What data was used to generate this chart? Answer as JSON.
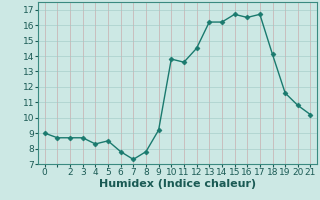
{
  "x": [
    0,
    1,
    2,
    3,
    4,
    5,
    6,
    7,
    8,
    9,
    10,
    11,
    12,
    13,
    14,
    15,
    16,
    17,
    18,
    19,
    20,
    21
  ],
  "y": [
    9.0,
    8.7,
    8.7,
    8.7,
    8.3,
    8.5,
    7.8,
    7.3,
    7.8,
    9.2,
    13.8,
    13.6,
    14.5,
    16.2,
    16.2,
    16.7,
    16.5,
    16.7,
    14.1,
    11.6,
    10.8,
    10.2
  ],
  "line_color": "#1a7a6e",
  "marker": "D",
  "marker_size": 2.5,
  "bg_color": "#cce8e4",
  "grid_color_major": "#b0d4cf",
  "grid_color_minor": "#e8f5f3",
  "xlabel": "Humidex (Indice chaleur)",
  "xlabel_fontsize": 8,
  "xlim": [
    -0.5,
    21.5
  ],
  "ylim": [
    7,
    17.5
  ],
  "yticks": [
    7,
    8,
    9,
    10,
    11,
    12,
    13,
    14,
    15,
    16,
    17
  ],
  "xticks": [
    0,
    1,
    2,
    3,
    4,
    5,
    6,
    7,
    8,
    9,
    10,
    11,
    12,
    13,
    14,
    15,
    16,
    17,
    18,
    19,
    20,
    21
  ],
  "xtick_labels": [
    "0",
    "",
    "2",
    "3",
    "4",
    "5",
    "6",
    "7",
    "8",
    "9",
    "10",
    "11",
    "12",
    "13",
    "14",
    "15",
    "16",
    "17",
    "18",
    "19",
    "20",
    "21"
  ],
  "tick_fontsize": 6.5,
  "linewidth": 1.0,
  "spine_color": "#3a8a80",
  "tick_color": "#1a5a54"
}
